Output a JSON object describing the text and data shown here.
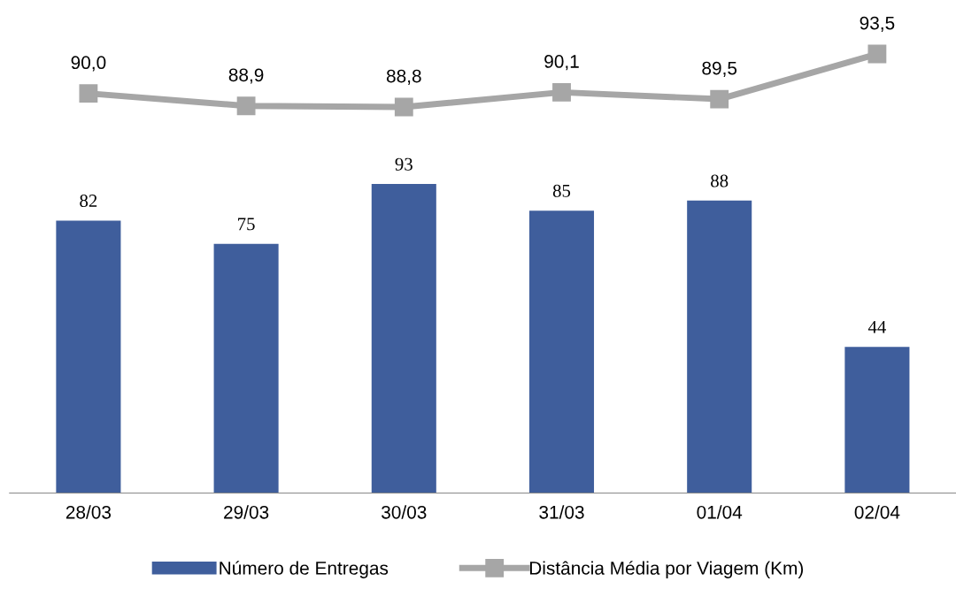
{
  "chart_data": [
    {
      "type": "line",
      "categories": [
        null,
        null,
        null,
        null,
        null,
        null
      ],
      "series": [
        {
          "name": "Distância Média por Viagem (Km)",
          "color": "#a6a6a6",
          "values": [
            90.0,
            88.9,
            88.8,
            90.1,
            89.5,
            93.5
          ],
          "value_labels": [
            "90,0",
            "88,9",
            "88,8",
            "90,1",
            "89,5",
            "93,5"
          ]
        }
      ],
      "marker": "square",
      "data_labels": true,
      "tick_labels": false
    },
    {
      "type": "bar",
      "categories": [
        "28/03",
        "29/03",
        "30/03",
        "31/03",
        "01/04",
        "02/04"
      ],
      "series": [
        {
          "name": "Número de Entregas",
          "color": "#3f5e9c",
          "values": [
            82,
            75,
            93,
            85,
            88,
            44
          ]
        }
      ],
      "data_labels": true,
      "legend": "bottom",
      "tick_labels": "x"
    }
  ]
}
